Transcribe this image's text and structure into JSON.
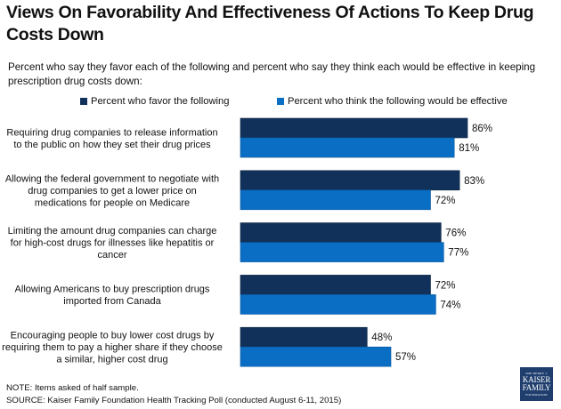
{
  "title": "Views On Favorability And Effectiveness Of Actions To Keep Drug Costs Down",
  "subtitle": "Percent who say they favor each of the following and percent who say they think each would be effective in keeping prescription drug costs down:",
  "colors": {
    "favor": "#12315a",
    "effective": "#0a6ec4"
  },
  "legend": [
    {
      "label": "Percent who favor the following",
      "color": "#12315a"
    },
    {
      "label": "Percent who think the following would be effective",
      "color": "#0a6ec4"
    }
  ],
  "notes": {
    "note": "NOTE: Items asked of half sample.",
    "source": "SOURCE: Kaiser Family Foundation Health Tracking Poll (conducted August 6-11, 2015)"
  },
  "logo": {
    "line1": "THE HENRY J.",
    "line2": "KAISER",
    "line3": "FAMILY",
    "line4": "FOUNDATION"
  },
  "chart_data": {
    "type": "bar",
    "orientation": "horizontal",
    "title": "Views On Favorability And Effectiveness Of Actions To Keep Drug Costs Down",
    "xlabel": "",
    "ylabel": "",
    "xlim": [
      0,
      100
    ],
    "grid": false,
    "legend_position": "top",
    "value_suffix": "%",
    "categories": [
      [
        "Requiring drug companies to release information",
        "to the public on how they set their drug prices"
      ],
      [
        "Allowing the federal government to negotiate with",
        "drug companies to get a lower price on",
        "medications for people on Medicare"
      ],
      [
        "Limiting the amount drug companies can charge",
        "for high-cost drugs for illnesses like hepatitis or",
        "cancer"
      ],
      [
        "Allowing Americans to buy prescription drugs",
        "imported from Canada"
      ],
      [
        "Encouraging people to buy lower cost drugs by",
        "requiring them to pay a higher share if they choose",
        "a similar, higher cost drug"
      ]
    ],
    "series": [
      {
        "name": "Percent who favor the following",
        "values": [
          86,
          83,
          76,
          72,
          48
        ]
      },
      {
        "name": "Percent who think the following would be effective",
        "values": [
          81,
          72,
          77,
          74,
          57
        ]
      }
    ]
  }
}
